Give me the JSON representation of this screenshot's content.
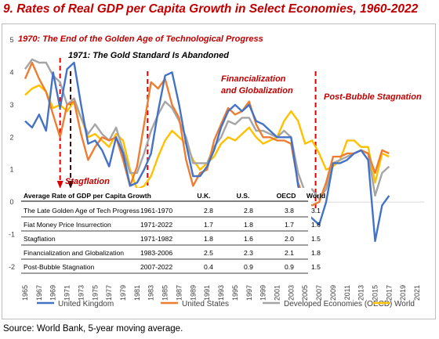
{
  "title": "9. Rates of Real GDP per Capita Growth in Select Economies, 1960-2022",
  "source": "Source: World Bank, 5-year moving average.",
  "colors": {
    "uk": "#4472c4",
    "us": "#ed7d31",
    "oecd": "#a5a5a5",
    "world": "#ffc000",
    "annotation": "#c00000",
    "dash_red": "#e00000",
    "dash_dark": "#3a0a0a"
  },
  "annotations": [
    {
      "text": "1970: The End of the Golden Age of Technological Progress",
      "color": "#c00000"
    },
    {
      "text": "1971: The Gold Standard Is Abandoned",
      "color": "#000000"
    },
    {
      "text": "Financialization",
      "color": "#c00000"
    },
    {
      "text": "and Globalization",
      "color": "#c00000"
    },
    {
      "text": "Post-Bubble Stagnation",
      "color": "#c00000"
    },
    {
      "text": "Stagflation",
      "color": "#c00000"
    }
  ],
  "table": {
    "header": [
      "Average Rate of GDP per Capita Growth",
      "",
      "U.K.",
      "U.S.",
      "OECD",
      "World"
    ],
    "rows": [
      [
        "The Late Golden Age of Tech Progress",
        "1961-1970",
        "2.8",
        "2.8",
        "3.8",
        "3.1"
      ],
      [
        "Fiat Money Price Insurrection",
        "1971-2022",
        "1.7",
        "1.8",
        "1.7",
        "1.6"
      ],
      [
        "Stagflation",
        "1971-1982",
        "1.8",
        "1.6",
        "2.0",
        "1.5"
      ],
      [
        "Financialization and Globalization",
        "1983-2006",
        "2.5",
        "2.3",
        "2.1",
        "1.8"
      ],
      [
        "Post-Bubble Stagnation",
        "2007-2022",
        "0.4",
        "0.9",
        "0.9",
        "1.5"
      ]
    ]
  },
  "chart_data": {
    "type": "line",
    "title": "9. Rates of Real GDP per Capita Growth in Select Economies, 1960-2022",
    "x_start": 1965,
    "x_end": 2022,
    "x_tick_labels": [
      "1965",
      "1967",
      "1969",
      "1971",
      "1973",
      "1975",
      "1977",
      "1979",
      "1981",
      "1983",
      "1985",
      "1987",
      "1989",
      "1991",
      "1993",
      "1995",
      "1997",
      "1999",
      "2001",
      "2003",
      "2005",
      "2007",
      "2009",
      "2011",
      "2013",
      "2015",
      "2017",
      "2019",
      "2021"
    ],
    "y_tick_labels": [
      "-2",
      "-1",
      "0",
      "1",
      "2",
      "3",
      "4",
      "5"
    ],
    "ylim": [
      -2,
      5
    ],
    "grid": false,
    "legend_position": "bottom",
    "series": [
      {
        "name": "United Kingdom",
        "color": "#4472c4",
        "values": [
          2.5,
          2.3,
          2.7,
          2.2,
          4.0,
          2.9,
          4.1,
          4.3,
          3.0,
          1.8,
          1.9,
          1.6,
          1.1,
          2.0,
          1.5,
          0.5,
          0.6,
          1.0,
          1.5,
          2.8,
          3.9,
          4.0,
          3.0,
          1.8,
          0.8,
          0.8,
          1.1,
          1.6,
          2.3,
          2.8,
          3.0,
          2.8,
          3.0,
          2.5,
          2.4,
          2.2,
          2.0,
          2.0,
          2.0,
          0.5,
          -0.3,
          -0.5,
          -0.7,
          0.0,
          1.2,
          1.2,
          1.3,
          1.5,
          1.6,
          1.3,
          -1.2,
          -0.1,
          0.2
        ]
      },
      {
        "name": "United States",
        "color": "#ed7d31",
        "values": [
          3.8,
          4.3,
          3.8,
          3.4,
          2.7,
          2.0,
          3.0,
          3.1,
          2.1,
          1.3,
          1.7,
          2.0,
          1.9,
          2.0,
          1.3,
          0.5,
          1.1,
          2.4,
          3.7,
          3.5,
          3.8,
          3.0,
          2.6,
          1.3,
          0.5,
          0.9,
          1.0,
          1.9,
          2.4,
          2.9,
          2.7,
          2.8,
          3.1,
          2.4,
          2.0,
          2.0,
          1.9,
          1.9,
          1.8,
          0.6,
          0.0,
          -0.1,
          0.0,
          0.6,
          1.4,
          1.4,
          1.5,
          1.5,
          1.6,
          1.5,
          0.9,
          1.6,
          1.5
        ]
      },
      {
        "name": "Developed Economies (OECD)",
        "color": "#a5a5a5",
        "values": [
          4.1,
          4.4,
          4.3,
          4.3,
          3.9,
          3.7,
          3.0,
          3.2,
          2.6,
          2.1,
          2.4,
          2.1,
          1.9,
          2.3,
          1.6,
          0.9,
          0.9,
          1.5,
          2.2,
          2.7,
          3.1,
          2.9,
          2.5,
          2.0,
          1.2,
          1.2,
          1.2,
          1.7,
          2.0,
          2.5,
          2.4,
          2.6,
          2.6,
          2.2,
          2.2,
          2.1,
          2.0,
          2.2,
          2.0,
          0.9,
          0.3,
          0.4,
          0.1,
          0.4,
          1.2,
          1.3,
          1.4,
          1.5,
          1.6,
          1.5,
          0.2,
          0.9,
          1.1
        ]
      },
      {
        "name": "World",
        "color": "#ffc000",
        "values": [
          3.3,
          3.5,
          3.6,
          3.4,
          2.9,
          3.0,
          2.8,
          3.1,
          2.6,
          2.0,
          2.1,
          1.9,
          1.7,
          2.1,
          1.9,
          1.0,
          0.4,
          0.5,
          0.8,
          1.4,
          1.9,
          2.2,
          2.0,
          1.8,
          1.3,
          1.0,
          1.2,
          1.4,
          1.8,
          2.0,
          1.9,
          2.1,
          2.3,
          2.0,
          1.8,
          1.9,
          2.0,
          2.5,
          2.8,
          2.5,
          1.8,
          1.9,
          1.5,
          1.0,
          1.1,
          1.3,
          1.9,
          1.9,
          1.7,
          1.7,
          0.6,
          1.5,
          1.4
        ]
      }
    ]
  }
}
